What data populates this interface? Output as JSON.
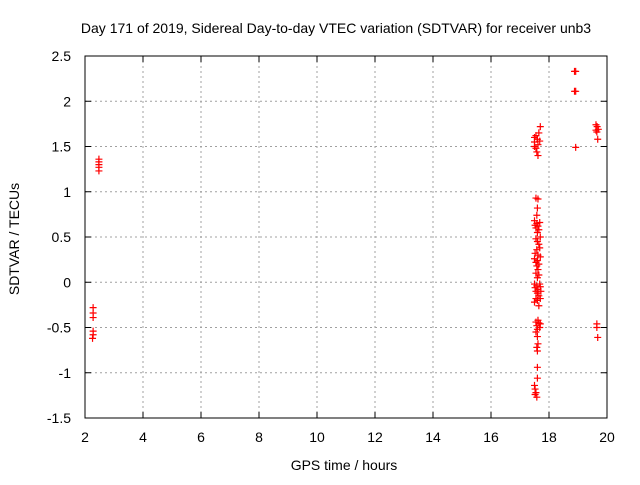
{
  "colors": {
    "marker": "#ff0000",
    "grid": "#a0a0a0",
    "axis": "#000000",
    "background": "#ffffff"
  },
  "chart_data": {
    "type": "scatter",
    "title": "Day 171 of 2019, Sidereal Day-to-day VTEC variation (SDTVAR) for receiver unb3",
    "xlabel": "GPS time / hours",
    "ylabel": "SDTVAR / TECUs",
    "xlim": [
      2,
      20
    ],
    "ylim": [
      -1.5,
      2.5
    ],
    "xticks": [
      2,
      4,
      6,
      8,
      10,
      12,
      14,
      16,
      18,
      20
    ],
    "yticks": [
      -1.5,
      -1,
      -0.5,
      0,
      0.5,
      1,
      1.5,
      2,
      2.5
    ],
    "xtick_labels": [
      "2",
      "4",
      "6",
      "8",
      "10",
      "12",
      "14",
      "16",
      "18",
      "20"
    ],
    "ytick_labels": [
      "-1.5",
      "-1",
      "-0.5",
      "0",
      "0.5",
      "1",
      "1.5",
      "2",
      "2.5"
    ],
    "grid": true,
    "marker": "+",
    "series": [
      {
        "name": "SDTVAR",
        "points": [
          [
            2.28,
            -0.28
          ],
          [
            2.28,
            -0.34
          ],
          [
            2.28,
            -0.39
          ],
          [
            2.28,
            -0.54
          ],
          [
            2.28,
            -0.58
          ],
          [
            2.26,
            -0.62
          ],
          [
            2.48,
            1.23
          ],
          [
            2.48,
            1.27
          ],
          [
            2.48,
            1.3
          ],
          [
            2.48,
            1.33
          ],
          [
            2.48,
            1.36
          ],
          [
            17.5,
            1.6
          ],
          [
            17.5,
            1.55
          ],
          [
            17.5,
            1.5
          ],
          [
            17.55,
            1.62
          ],
          [
            17.58,
            1.44
          ],
          [
            17.6,
            1.58
          ],
          [
            17.62,
            1.52
          ],
          [
            17.65,
            1.65
          ],
          [
            17.68,
            1.56
          ],
          [
            17.7,
            1.72
          ],
          [
            17.62,
            1.4
          ],
          [
            17.55,
            1.48
          ],
          [
            17.55,
            0.93
          ],
          [
            17.62,
            0.92
          ],
          [
            17.6,
            0.82
          ],
          [
            17.58,
            0.74
          ],
          [
            17.5,
            0.68
          ],
          [
            17.52,
            0.63
          ],
          [
            17.55,
            0.6
          ],
          [
            17.58,
            0.65
          ],
          [
            17.6,
            0.55
          ],
          [
            17.62,
            0.62
          ],
          [
            17.65,
            0.58
          ],
          [
            17.68,
            0.66
          ],
          [
            17.7,
            0.5
          ],
          [
            17.55,
            0.48
          ],
          [
            17.6,
            0.45
          ],
          [
            17.65,
            0.42
          ],
          [
            17.58,
            0.36
          ],
          [
            17.62,
            0.3
          ],
          [
            17.52,
            0.32
          ],
          [
            17.68,
            0.38
          ],
          [
            17.5,
            0.26
          ],
          [
            17.55,
            0.22
          ],
          [
            17.58,
            0.18
          ],
          [
            17.6,
            0.24
          ],
          [
            17.62,
            0.14
          ],
          [
            17.65,
            0.2
          ],
          [
            17.7,
            0.28
          ],
          [
            17.55,
            0.1
          ],
          [
            17.6,
            0.05
          ],
          [
            17.65,
            0.08
          ],
          [
            17.5,
            -0.02
          ],
          [
            17.52,
            -0.06
          ],
          [
            17.55,
            -0.1
          ],
          [
            17.58,
            -0.04
          ],
          [
            17.6,
            -0.12
          ],
          [
            17.62,
            -0.08
          ],
          [
            17.65,
            -0.15
          ],
          [
            17.68,
            -0.02
          ],
          [
            17.7,
            -0.05
          ],
          [
            17.72,
            -0.1
          ],
          [
            17.55,
            -0.18
          ],
          [
            17.6,
            -0.2
          ],
          [
            17.5,
            -0.22
          ],
          [
            17.65,
            -0.26
          ],
          [
            17.7,
            -0.18
          ],
          [
            17.55,
            -0.44
          ],
          [
            17.58,
            -0.48
          ],
          [
            17.6,
            -0.52
          ],
          [
            17.65,
            -0.45
          ],
          [
            17.68,
            -0.5
          ],
          [
            17.62,
            -0.42
          ],
          [
            17.7,
            -0.46
          ],
          [
            17.55,
            -0.55
          ],
          [
            17.6,
            -0.6
          ],
          [
            17.62,
            -0.68
          ],
          [
            17.58,
            -0.72
          ],
          [
            17.6,
            -0.76
          ],
          [
            17.6,
            -0.94
          ],
          [
            17.6,
            -1.06
          ],
          [
            17.5,
            -1.14
          ],
          [
            17.52,
            -1.18
          ],
          [
            17.55,
            -1.22
          ],
          [
            17.58,
            -1.27
          ],
          [
            17.52,
            -1.24
          ],
          [
            18.88,
            2.33
          ],
          [
            18.92,
            2.33
          ],
          [
            18.88,
            2.11
          ],
          [
            18.92,
            2.11
          ],
          [
            18.92,
            1.49
          ],
          [
            19.62,
            1.74
          ],
          [
            19.66,
            1.72
          ],
          [
            19.7,
            1.69
          ],
          [
            19.65,
            1.66
          ],
          [
            19.62,
            1.68
          ],
          [
            19.68,
            1.58
          ],
          [
            19.65,
            -0.46
          ],
          [
            19.65,
            -0.5
          ],
          [
            19.68,
            -0.61
          ]
        ]
      }
    ]
  }
}
